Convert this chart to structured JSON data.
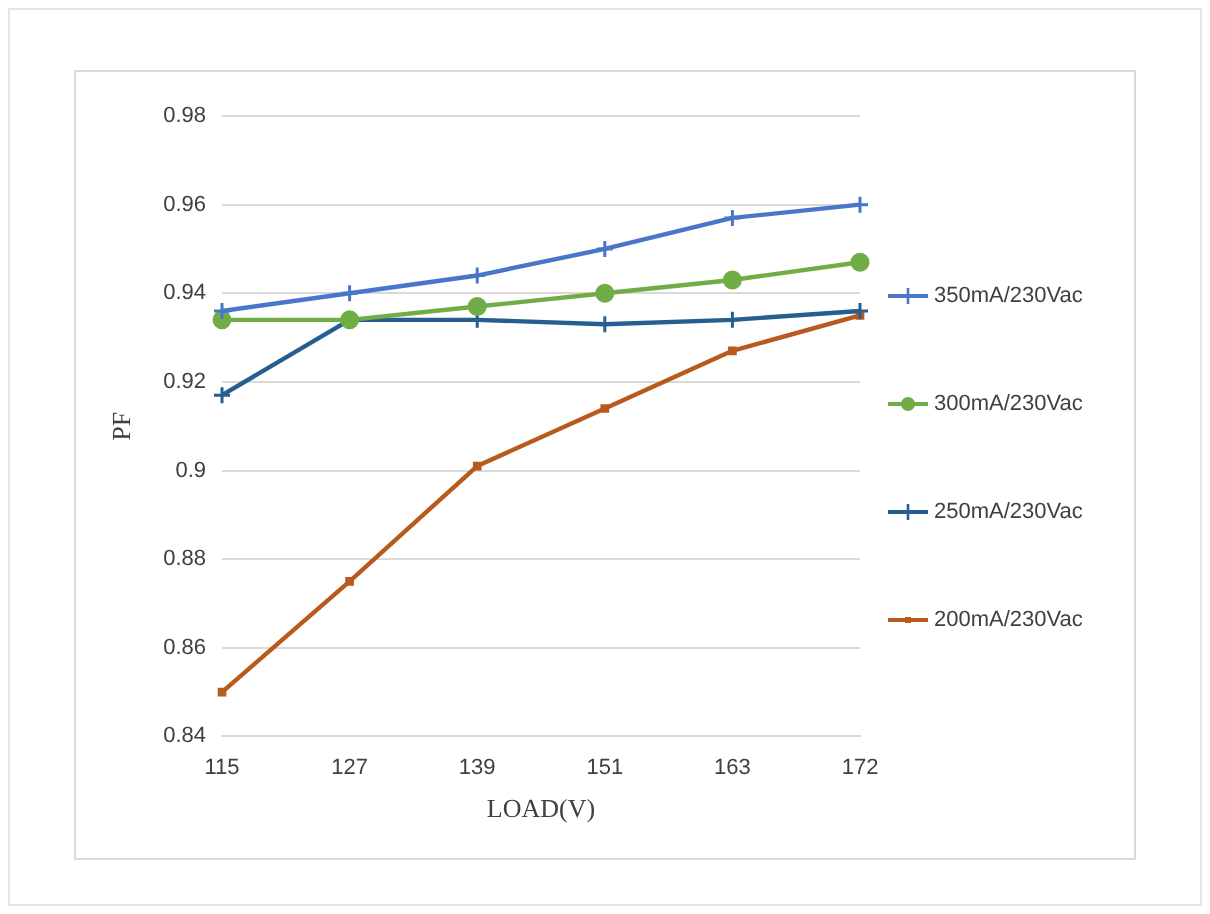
{
  "chart_data": {
    "type": "line",
    "xlabel": "LOAD(V)",
    "ylabel": "PF",
    "categories": [
      "115",
      "127",
      "139",
      "151",
      "163",
      "172"
    ],
    "series": [
      {
        "name": "350mA/230Vac",
        "color": "#4a76c9",
        "marker": "cross",
        "values": [
          0.936,
          0.94,
          0.944,
          0.95,
          0.957,
          0.96
        ]
      },
      {
        "name": "300mA/230Vac",
        "color": "#70ad47",
        "marker": "circle",
        "values": [
          0.934,
          0.934,
          0.937,
          0.94,
          0.943,
          0.947
        ]
      },
      {
        "name": "250mA/230Vac",
        "color": "#275e91",
        "marker": "cross",
        "values": [
          0.917,
          0.934,
          0.934,
          0.933,
          0.934,
          0.936
        ]
      },
      {
        "name": "200mA/230Vac",
        "color": "#b85a1c",
        "marker": "square",
        "values": [
          0.85,
          0.875,
          0.901,
          0.914,
          0.927,
          0.935
        ]
      }
    ],
    "ylim": [
      0.84,
      0.98
    ],
    "yticks": [
      0.84,
      0.86,
      0.88,
      0.9,
      0.92,
      0.94,
      0.96,
      0.98
    ],
    "grid": "y",
    "legend": "right",
    "line_style": "solid"
  }
}
